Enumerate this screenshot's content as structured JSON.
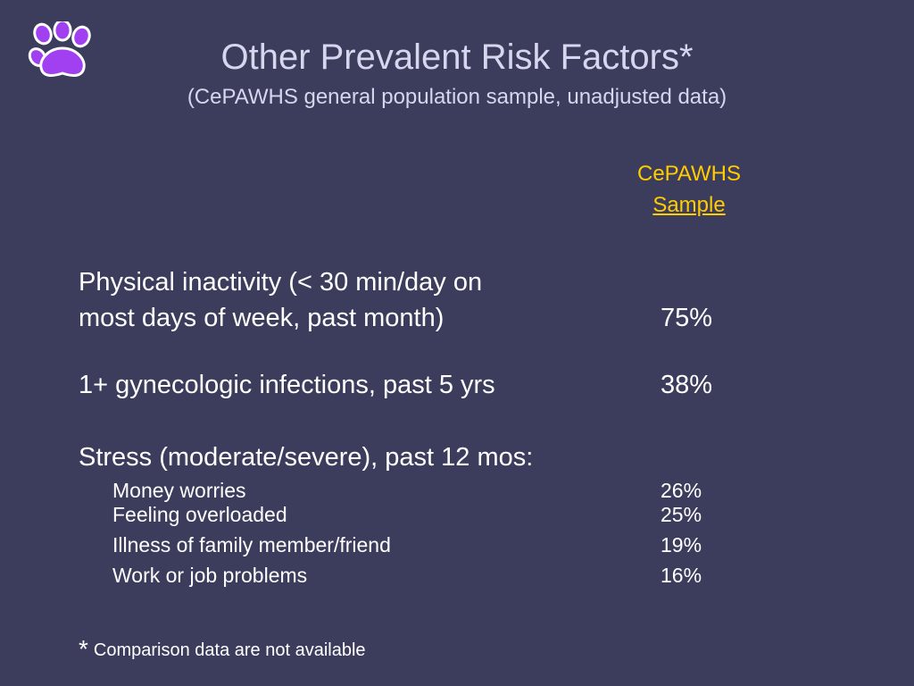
{
  "slide": {
    "title": "Other Prevalent Risk Factors*",
    "subtitle": "(CePAWHS general population sample, unadjusted data)",
    "column_header": {
      "line1": "CePAWHS",
      "line2": "Sample"
    },
    "rows": [
      {
        "label_line1": "Physical inactivity (< 30 min/day on",
        "label_line2": "most days of week, past month)",
        "value": "75%"
      },
      {
        "label": "1+ gynecologic infections, past 5 yrs",
        "value": "38%"
      }
    ],
    "stress": {
      "heading": "Stress (moderate/severe), past 12 mos:",
      "items": [
        {
          "label": "Money worries",
          "value": "26%"
        },
        {
          "label": "Feeling overloaded",
          "value": "25%"
        },
        {
          "label": "Illness of family member/friend",
          "value": "19%"
        },
        {
          "label": "Work or job problems",
          "value": "16%"
        }
      ]
    },
    "footnote": {
      "marker": "*",
      "text": "Comparison data are not available"
    },
    "logo_icon": "paw-print-icon",
    "colors": {
      "background": "#3c3c5c",
      "title": "#d6d6ee",
      "accent": "#ffcc00",
      "paw_fill": "#a040f0",
      "paw_outline": "#ffffff"
    }
  }
}
